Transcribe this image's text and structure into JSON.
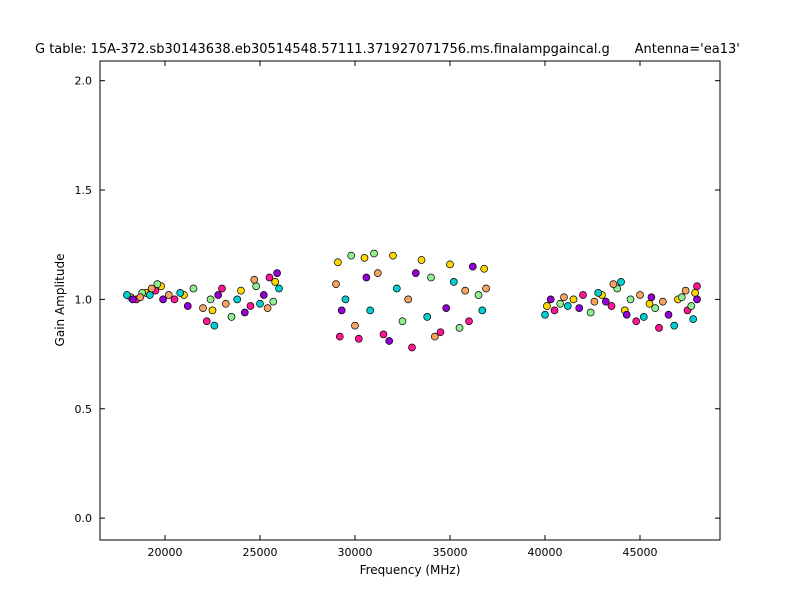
{
  "chart_data": {
    "type": "scatter",
    "title": "G table: 15A-372.sb30143638.eb30514548.57111.371927071756.ms.finalampgaincal.g      Antenna='ea13'",
    "x_label": "Frequency (MHz)",
    "y_label": "Gain Amplitude",
    "xlim": [
      16580,
      49210
    ],
    "ylim": [
      -0.1,
      2.09
    ],
    "xticks": [
      20000,
      25000,
      30000,
      35000,
      40000,
      45000
    ],
    "yticks": [
      {
        "value": 0,
        "label": "0.0"
      },
      0.5,
      {
        "value": 1,
        "label": "1.0"
      },
      1.5,
      {
        "value": 2,
        "label": "2.0"
      }
    ],
    "series": [
      {
        "color": "#ffd700",
        "x": [
          18200,
          19000,
          19800,
          21000,
          22500,
          24000,
          25800,
          29100,
          30500,
          32000,
          33500,
          35000,
          36800,
          40100,
          41500,
          43000,
          44200,
          45500,
          47000,
          47900
        ],
        "y": [
          1.01,
          1.03,
          1.06,
          1.02,
          0.95,
          1.04,
          1.08,
          1.17,
          1.19,
          1.2,
          1.18,
          1.16,
          1.14,
          0.97,
          1.0,
          1.02,
          0.95,
          0.98,
          1.0,
          1.03
        ]
      },
      {
        "color": "#ff1493",
        "x": [
          18500,
          19500,
          20500,
          22200,
          23000,
          24500,
          25500,
          29200,
          30200,
          31500,
          33000,
          34500,
          36000,
          40500,
          42000,
          43500,
          44800,
          46000,
          47500,
          48000
        ],
        "y": [
          1.0,
          1.04,
          1.0,
          0.9,
          1.05,
          0.97,
          1.1,
          0.83,
          0.82,
          0.84,
          0.78,
          0.85,
          0.9,
          0.95,
          1.02,
          0.97,
          0.9,
          0.87,
          0.95,
          1.06
        ]
      },
      {
        "color": "#00ced1",
        "x": [
          18000,
          19200,
          20800,
          22600,
          23800,
          25000,
          26000,
          29500,
          30800,
          32200,
          33800,
          35200,
          36700,
          40000,
          41200,
          42800,
          44000,
          45200,
          46800,
          47800
        ],
        "y": [
          1.02,
          1.02,
          1.03,
          0.88,
          1.0,
          0.98,
          1.05,
          1.0,
          0.95,
          1.05,
          0.92,
          1.08,
          0.95,
          0.93,
          0.97,
          1.03,
          1.08,
          0.92,
          0.88,
          0.91
        ]
      },
      {
        "color": "#90ee90",
        "x": [
          18800,
          19600,
          21500,
          22400,
          23500,
          24800,
          25700,
          29800,
          31000,
          32500,
          34000,
          35500,
          36500,
          40800,
          42400,
          43800,
          44500,
          45800,
          47200,
          47700
        ],
        "y": [
          1.03,
          1.07,
          1.05,
          1.0,
          0.92,
          1.06,
          0.99,
          1.2,
          1.21,
          0.9,
          1.1,
          0.87,
          1.02,
          0.98,
          0.94,
          1.05,
          1.0,
          0.96,
          1.01,
          0.97
        ]
      },
      {
        "color": "#9400d3",
        "x": [
          18300,
          19900,
          21200,
          22800,
          24200,
          25200,
          25900,
          29300,
          30600,
          31800,
          33200,
          34800,
          36200,
          40300,
          41800,
          43200,
          44300,
          45600,
          46500,
          48000
        ],
        "y": [
          1.0,
          1.0,
          0.97,
          1.02,
          0.94,
          1.02,
          1.12,
          0.95,
          1.1,
          0.81,
          1.12,
          0.96,
          1.15,
          1.0,
          0.96,
          0.99,
          0.93,
          1.01,
          0.93,
          1.0
        ]
      },
      {
        "color": "#f4a460",
        "x": [
          18700,
          19300,
          20200,
          22000,
          23200,
          24700,
          25400,
          29000,
          30000,
          31200,
          32800,
          34200,
          35800,
          36900,
          41000,
          42600,
          43600,
          45000,
          46200,
          47400
        ],
        "y": [
          1.01,
          1.05,
          1.02,
          0.96,
          0.98,
          1.09,
          0.96,
          1.07,
          0.88,
          1.12,
          1.0,
          0.83,
          1.04,
          1.05,
          1.01,
          0.99,
          1.07,
          1.02,
          0.99,
          1.04
        ]
      }
    ]
  }
}
